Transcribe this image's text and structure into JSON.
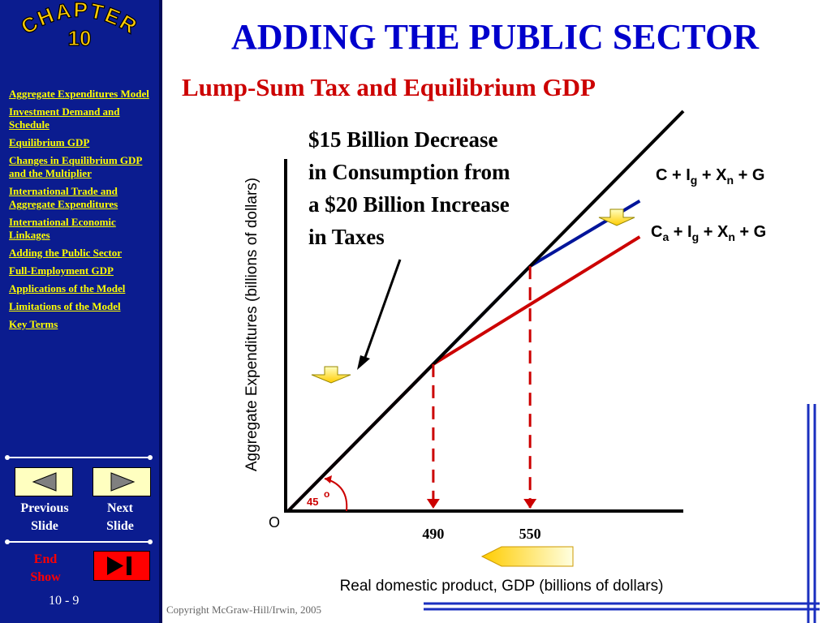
{
  "chapter": {
    "line1": "CHAPTER",
    "line2": "10"
  },
  "title": "ADDING THE PUBLIC SECTOR",
  "subtitle": "Lump-Sum Tax and Equilibrium GDP",
  "annotation": {
    "lines": [
      "$15 Billion Decrease",
      "in Consumption from",
      "a $20 Billion Increase",
      "in Taxes"
    ]
  },
  "sidebar": {
    "items": [
      {
        "label": "Aggregate Expenditures Model"
      },
      {
        "label": "Investment Demand and Schedule"
      },
      {
        "label": "Equilibrium GDP"
      },
      {
        "label": "Changes in Equilibrium GDP and the Multiplier"
      },
      {
        "label": "International Trade and Aggregate Expenditures"
      },
      {
        "label": "International Economic Linkages"
      },
      {
        "label": "Adding the Public Sector"
      },
      {
        "label": "Full-Employment GDP"
      },
      {
        "label": "Applications of the Model"
      },
      {
        "label": "Limitations of the Model"
      },
      {
        "label": "Key Terms"
      }
    ],
    "previous": {
      "line1": "Previous",
      "line2": "Slide"
    },
    "next": {
      "line1": "Next",
      "line2": "Slide"
    },
    "end": {
      "line1": "End",
      "line2": "Show"
    },
    "slide_number": "10 - 9"
  },
  "chart_data": {
    "type": "line",
    "xlabel": "Real domestic product, GDP (billions of dollars)",
    "ylabel": "Aggregate Expenditures (billions of dollars)",
    "origin_label": "O",
    "angle_label": "45",
    "angle_unit": "o",
    "x_ticks": [
      490,
      550
    ],
    "series": [
      {
        "name": "C + Ig + Xn + G",
        "color": "#00149a",
        "x": [
          400,
          550,
          618
        ],
        "y": [
          400,
          550,
          590
        ]
      },
      {
        "name": "Ca + Ig + Xn + G",
        "color": "#cc0000",
        "x": [
          400,
          490,
          618
        ],
        "y": [
          400,
          490,
          568
        ]
      },
      {
        "name": "45-degree line",
        "color": "#000000",
        "x": [
          400,
          645
        ],
        "y": [
          400,
          645
        ]
      }
    ],
    "equilibria": [
      {
        "x": 490,
        "y": 490
      },
      {
        "x": 550,
        "y": 550
      }
    ],
    "xlim": [
      400,
      645
    ],
    "ylim": [
      400,
      645
    ]
  },
  "labels": {
    "top_curve": {
      "base": "C + I",
      "sub1": "g",
      "mid": " + X",
      "sub2": "n",
      "tail": " + G"
    },
    "bottom_curve": {
      "base": "C",
      "sub0": "a",
      "mid0": " + I",
      "sub1": "g",
      "mid": " + X",
      "sub2": "n",
      "tail": " + G"
    }
  },
  "copyright": "Copyright McGraw-Hill/Irwin, 2005",
  "colors": {
    "sidebar": "#0b1c8f",
    "title": "#0000cc",
    "subtitle": "#cc0000",
    "link": "#ffff00",
    "arrow": "#ffcc00"
  }
}
